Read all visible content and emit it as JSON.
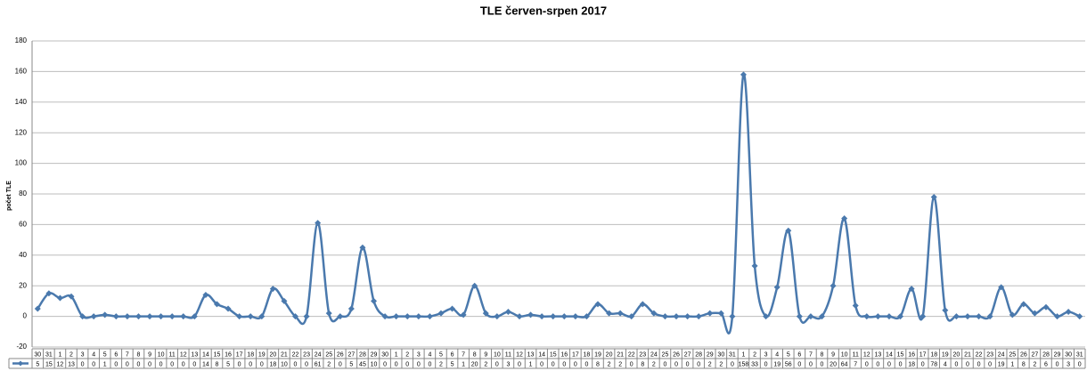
{
  "chart_data": {
    "type": "line",
    "title": "TLE červen-srpen 2017",
    "y_label": "počet TLE",
    "categories": [
      "30",
      "31",
      "1",
      "2",
      "3",
      "4",
      "5",
      "6",
      "7",
      "8",
      "9",
      "10",
      "11",
      "12",
      "13",
      "14",
      "15",
      "16",
      "17",
      "18",
      "19",
      "20",
      "21",
      "22",
      "23",
      "24",
      "25",
      "26",
      "27",
      "28",
      "29",
      "30",
      "1",
      "2",
      "3",
      "4",
      "5",
      "6",
      "7",
      "8",
      "9",
      "10",
      "11",
      "12",
      "13",
      "14",
      "15",
      "16",
      "17",
      "18",
      "19",
      "20",
      "21",
      "22",
      "23",
      "24",
      "25",
      "26",
      "27",
      "28",
      "29",
      "30",
      "31",
      "1",
      "2",
      "3",
      "4",
      "5",
      "6",
      "7",
      "8",
      "9",
      "10",
      "11",
      "12",
      "13",
      "14",
      "15",
      "16",
      "17",
      "18",
      "19",
      "20",
      "21",
      "22",
      "23",
      "24",
      "25",
      "26",
      "27",
      "28",
      "29",
      "30",
      "31"
    ],
    "values": [
      5,
      15,
      12,
      13,
      0,
      0,
      1,
      0,
      0,
      0,
      0,
      0,
      0,
      0,
      0,
      14,
      8,
      5,
      0,
      0,
      0,
      18,
      10,
      0,
      0,
      61,
      2,
      0,
      5,
      45,
      10,
      0,
      0,
      0,
      0,
      0,
      2,
      5,
      1,
      20,
      2,
      0,
      3,
      0,
      1,
      0,
      0,
      0,
      0,
      0,
      8,
      2,
      2,
      0,
      8,
      2,
      0,
      0,
      0,
      0,
      2,
      2,
      0,
      158,
      33,
      0,
      19,
      56,
      0,
      0,
      0,
      20,
      64,
      7,
      0,
      0,
      0,
      0,
      18,
      0,
      78,
      4,
      0,
      0,
      0,
      0,
      19,
      1,
      8,
      2,
      6,
      0,
      3,
      0
    ],
    "color": "#4a79ad",
    "ylim": [
      -20,
      180
    ],
    "yticks": [
      -20,
      0,
      20,
      40,
      60,
      80,
      100,
      120,
      140,
      160,
      180
    ],
    "grid": true
  }
}
